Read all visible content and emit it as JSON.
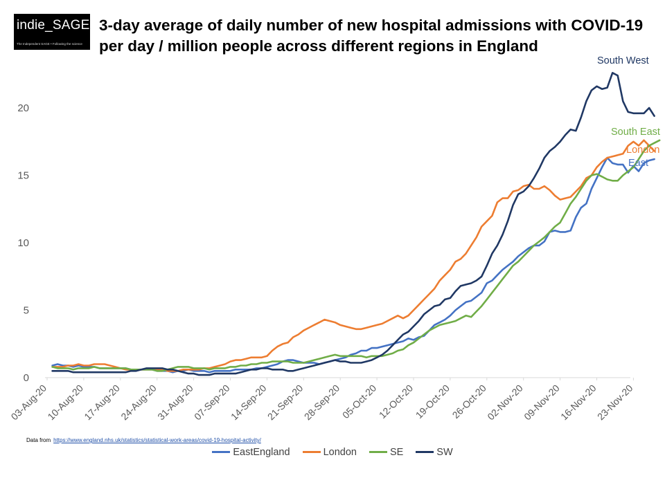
{
  "logo": {
    "name": "indie_SAGE",
    "tagline": "The Independent SAGE • Following the science"
  },
  "source": {
    "prefix": "Data from",
    "url": "https://www.england.nhs.uk/statistics/statistical-work-areas/covid-19-hospital-activity/"
  },
  "chart_data": {
    "type": "line",
    "title": "3-day average of daily number of new hospital admissions with COVID-19 per day / million people across different regions in England",
    "xlabel": "",
    "ylabel": "",
    "ylim": [
      0,
      23
    ],
    "yticks": [
      0,
      5,
      10,
      15,
      20
    ],
    "grid": false,
    "legend_position": "bottom",
    "x_tick_labels": [
      "03-Aug-20",
      "10-Aug-20",
      "17-Aug-20",
      "24-Aug-20",
      "31-Aug-20",
      "07-Sep-20",
      "14-Sep-20",
      "21-Sep-20",
      "28-Sep-20",
      "05-Oct-20",
      "12-Oct-20",
      "19-Oct-20",
      "26-Oct-20",
      "02-Nov-20",
      "09-Nov-20",
      "16-Nov-20",
      "23-Nov-20"
    ],
    "x_start": "04-Aug-20",
    "series": [
      {
        "name": "EastEngland",
        "end_label": "East",
        "color": "#4472C4",
        "values": [
          0.9,
          1.0,
          0.9,
          0.9,
          0.8,
          0.9,
          0.8,
          0.8,
          0.8,
          0.7,
          0.7,
          0.7,
          0.7,
          0.7,
          0.7,
          0.6,
          0.6,
          0.6,
          0.6,
          0.6,
          0.5,
          0.5,
          0.5,
          0.4,
          0.5,
          0.5,
          0.6,
          0.5,
          0.5,
          0.5,
          0.4,
          0.5,
          0.5,
          0.5,
          0.5,
          0.6,
          0.6,
          0.6,
          0.6,
          0.7,
          0.7,
          0.8,
          0.9,
          1.0,
          1.2,
          1.3,
          1.3,
          1.2,
          1.1,
          1.1,
          1.1,
          1.0,
          1.1,
          1.2,
          1.3,
          1.4,
          1.5,
          1.7,
          1.8,
          2.0,
          2.0,
          2.2,
          2.2,
          2.3,
          2.4,
          2.5,
          2.6,
          2.7,
          2.9,
          2.8,
          3.0,
          3.1,
          3.5,
          3.9,
          4.1,
          4.3,
          4.6,
          5.0,
          5.3,
          5.6,
          5.7,
          6.0,
          6.3,
          7.0,
          7.2,
          7.6,
          8.0,
          8.3,
          8.6,
          9.0,
          9.3,
          9.6,
          9.8,
          9.8,
          10.1,
          10.8,
          10.9,
          10.8,
          10.8,
          10.9,
          11.9,
          12.6,
          12.9,
          14.0,
          14.8,
          15.6,
          16.3,
          15.9,
          15.8,
          15.8,
          15.2,
          15.7,
          15.3,
          15.9,
          16.1,
          16.2
        ]
      },
      {
        "name": "London",
        "end_label": "London",
        "color": "#ED7D31",
        "values": [
          0.8,
          0.8,
          0.8,
          0.9,
          0.9,
          1.0,
          0.9,
          0.9,
          1.0,
          1.0,
          1.0,
          0.9,
          0.8,
          0.7,
          0.6,
          0.6,
          0.6,
          0.6,
          0.6,
          0.6,
          0.6,
          0.6,
          0.5,
          0.5,
          0.5,
          0.6,
          0.6,
          0.6,
          0.6,
          0.7,
          0.7,
          0.8,
          0.9,
          1.0,
          1.2,
          1.3,
          1.3,
          1.4,
          1.5,
          1.5,
          1.5,
          1.6,
          2.0,
          2.3,
          2.5,
          2.6,
          3.0,
          3.2,
          3.5,
          3.7,
          3.9,
          4.1,
          4.3,
          4.2,
          4.1,
          3.9,
          3.8,
          3.7,
          3.6,
          3.6,
          3.7,
          3.8,
          3.9,
          4.0,
          4.2,
          4.4,
          4.6,
          4.4,
          4.6,
          5.0,
          5.4,
          5.8,
          6.2,
          6.6,
          7.2,
          7.6,
          8.0,
          8.6,
          8.8,
          9.2,
          9.8,
          10.4,
          11.2,
          11.6,
          12.0,
          13.0,
          13.3,
          13.3,
          13.8,
          13.9,
          14.2,
          14.3,
          14.0,
          14.0,
          14.2,
          13.9,
          13.5,
          13.2,
          13.3,
          13.4,
          13.8,
          14.2,
          14.8,
          15.0,
          15.6,
          16.0,
          16.3,
          16.4,
          16.5,
          16.6,
          17.2,
          17.5,
          17.2,
          17.6,
          17.2,
          16.8
        ]
      },
      {
        "name": "SE",
        "end_label": "South East",
        "color": "#70AD47",
        "values": [
          0.8,
          0.7,
          0.7,
          0.7,
          0.6,
          0.7,
          0.7,
          0.7,
          0.8,
          0.7,
          0.7,
          0.7,
          0.7,
          0.7,
          0.7,
          0.6,
          0.6,
          0.6,
          0.6,
          0.6,
          0.5,
          0.5,
          0.6,
          0.7,
          0.8,
          0.8,
          0.8,
          0.7,
          0.7,
          0.7,
          0.6,
          0.7,
          0.7,
          0.7,
          0.8,
          0.8,
          0.9,
          0.9,
          1.0,
          1.0,
          1.1,
          1.1,
          1.2,
          1.2,
          1.2,
          1.2,
          1.1,
          1.1,
          1.1,
          1.2,
          1.3,
          1.4,
          1.5,
          1.6,
          1.7,
          1.6,
          1.6,
          1.6,
          1.6,
          1.6,
          1.5,
          1.6,
          1.6,
          1.6,
          1.7,
          1.8,
          2.0,
          2.1,
          2.4,
          2.6,
          2.9,
          3.2,
          3.5,
          3.7,
          3.9,
          4.0,
          4.1,
          4.2,
          4.4,
          4.6,
          4.5,
          4.9,
          5.3,
          5.8,
          6.3,
          6.8,
          7.3,
          7.8,
          8.3,
          8.6,
          9.0,
          9.4,
          9.8,
          10.1,
          10.4,
          10.8,
          11.2,
          11.5,
          12.2,
          12.9,
          13.4,
          14.0,
          14.6,
          15.0,
          15.1,
          14.9,
          14.7,
          14.6,
          14.6,
          15.0,
          15.3,
          15.6,
          16.2,
          16.8,
          17.2,
          17.4,
          17.6
        ]
      },
      {
        "name": "SW",
        "end_label": "South West",
        "color": "#203864",
        "values": [
          0.5,
          0.5,
          0.5,
          0.5,
          0.4,
          0.4,
          0.4,
          0.4,
          0.4,
          0.4,
          0.4,
          0.4,
          0.4,
          0.4,
          0.4,
          0.5,
          0.5,
          0.6,
          0.7,
          0.7,
          0.7,
          0.7,
          0.6,
          0.6,
          0.5,
          0.4,
          0.3,
          0.3,
          0.2,
          0.2,
          0.2,
          0.3,
          0.3,
          0.3,
          0.3,
          0.3,
          0.4,
          0.5,
          0.6,
          0.6,
          0.7,
          0.7,
          0.6,
          0.6,
          0.6,
          0.5,
          0.5,
          0.6,
          0.7,
          0.8,
          0.9,
          1.0,
          1.1,
          1.2,
          1.3,
          1.2,
          1.2,
          1.1,
          1.1,
          1.1,
          1.2,
          1.3,
          1.5,
          1.7,
          2.0,
          2.4,
          2.8,
          3.2,
          3.4,
          3.8,
          4.2,
          4.7,
          5.0,
          5.3,
          5.4,
          5.8,
          5.9,
          6.4,
          6.8,
          6.9,
          7.0,
          7.2,
          7.5,
          8.3,
          9.2,
          9.8,
          10.6,
          11.6,
          12.8,
          13.6,
          13.8,
          14.2,
          14.8,
          15.5,
          16.3,
          16.8,
          17.1,
          17.5,
          18.0,
          18.4,
          18.3,
          19.3,
          20.5,
          21.3,
          21.6,
          21.4,
          21.5,
          22.6,
          22.4,
          20.5,
          19.7,
          19.6,
          19.6,
          19.6,
          20.0,
          19.4
        ]
      }
    ]
  }
}
